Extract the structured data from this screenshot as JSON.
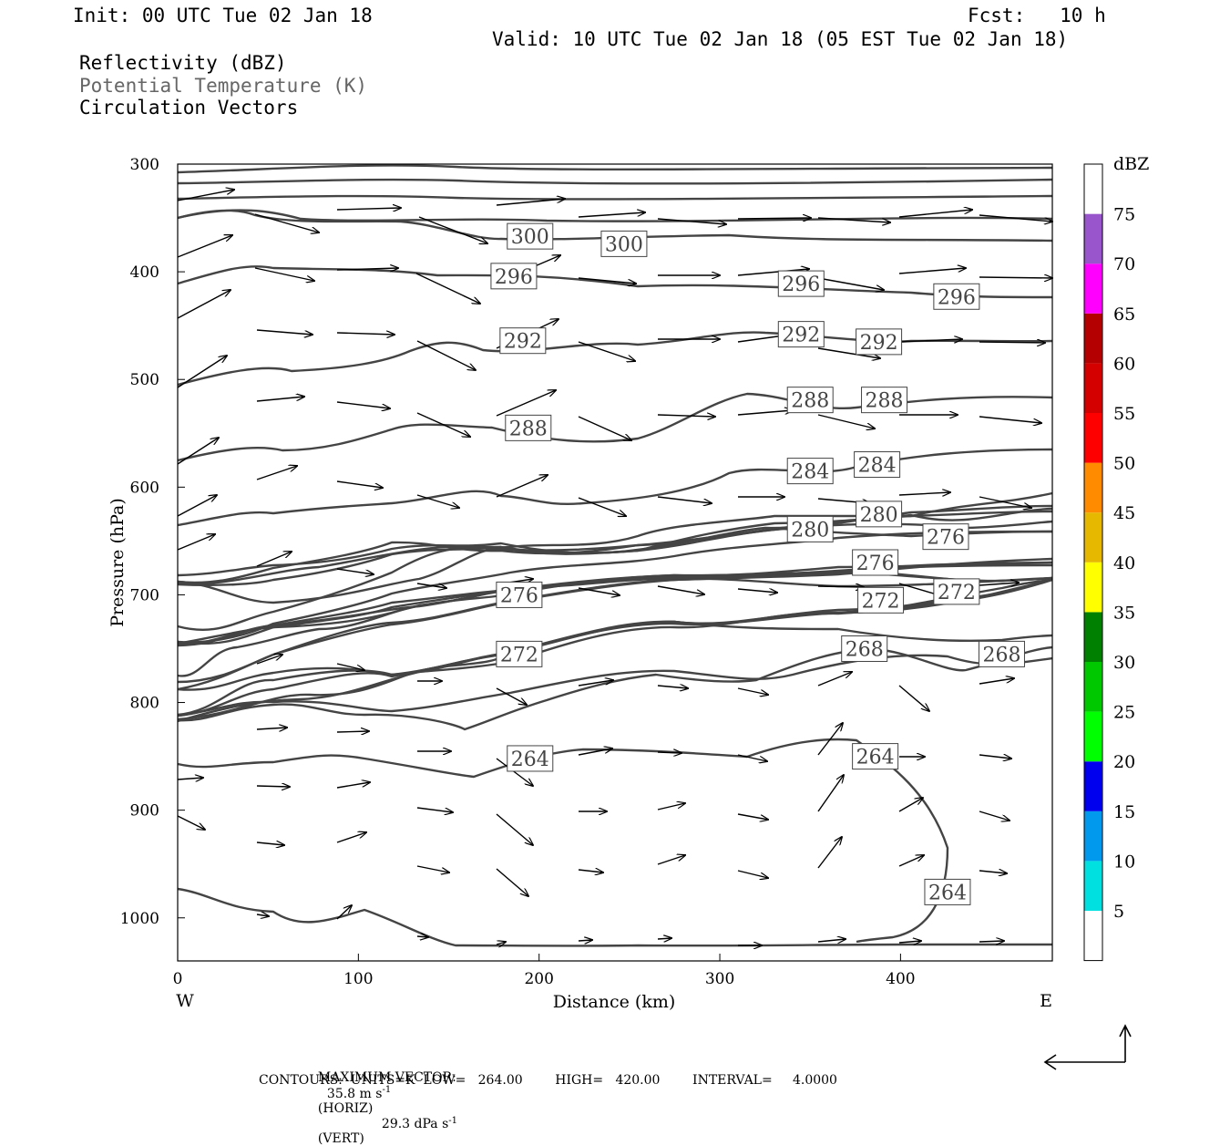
{
  "header": {
    "init": "Init: 00 UTC Tue 02 Jan 18",
    "fcst": "Fcst:   10 h",
    "valid": "Valid: 10 UTC Tue 02 Jan 18 (05 EST Tue 02 Jan 18)",
    "line1": "Reflectivity (dBZ)",
    "line2": "Potential Temperature (K)",
    "line3": "Circulation Vectors"
  },
  "footer": {
    "max_vector_label": "MAXIMUM VECTOR:",
    "max_vector_horiz": "35.8 m s",
    "horiz_tag": "(HORIZ)",
    "max_vector_vert": "29.3 dPa s",
    "vert_tag": "(VERT)",
    "contours": "CONTOURS:  UNITS=K  LOW=   264.00        HIGH=   420.00        INTERVAL=     4.0000"
  },
  "colors": {
    "contour": "#444444",
    "axis": "#000000"
  },
  "chart_data": {
    "type": "contour",
    "xlabel": "Distance (km)",
    "ylabel": "Pressure (hPa)",
    "xlim": [
      0,
      484
    ],
    "ylim": [
      1040,
      300
    ],
    "x_ticks": [
      0,
      100,
      200,
      300,
      400
    ],
    "y_ticks": [
      300,
      400,
      500,
      600,
      700,
      800,
      900,
      1000
    ],
    "x_left_label": "W",
    "x_right_label": "E",
    "colorbar": {
      "title": "dBZ",
      "levels": [
        5,
        10,
        15,
        20,
        25,
        30,
        35,
        40,
        45,
        50,
        55,
        60,
        65,
        70,
        75
      ],
      "colors": [
        "#ffffff",
        "#00e0e0",
        "#0099ee",
        "#0000ee",
        "#00ff00",
        "#00c800",
        "#008000",
        "#ffff00",
        "#e6b800",
        "#ff8c00",
        "#ff0000",
        "#d40000",
        "#b40000",
        "#ff00ff",
        "#9955cc",
        "#ffffff"
      ]
    },
    "contour_labels": [
      {
        "value": "300",
        "x": 195,
        "p": 367
      },
      {
        "value": "300",
        "x": 247,
        "p": 374
      },
      {
        "value": "296",
        "x": 186,
        "p": 404
      },
      {
        "value": "296",
        "x": 345,
        "p": 411
      },
      {
        "value": "296",
        "x": 431,
        "p": 423
      },
      {
        "value": "292",
        "x": 191,
        "p": 464
      },
      {
        "value": "292",
        "x": 345,
        "p": 458
      },
      {
        "value": "292",
        "x": 388,
        "p": 465
      },
      {
        "value": "288",
        "x": 194,
        "p": 545
      },
      {
        "value": "288",
        "x": 350,
        "p": 519
      },
      {
        "value": "288",
        "x": 391,
        "p": 519
      },
      {
        "value": "284",
        "x": 350,
        "p": 585
      },
      {
        "value": "284",
        "x": 387,
        "p": 579
      },
      {
        "value": "280",
        "x": 350,
        "p": 639
      },
      {
        "value": "280",
        "x": 388,
        "p": 625
      },
      {
        "value": "276",
        "x": 425,
        "p": 646
      },
      {
        "value": "276",
        "x": 386,
        "p": 670
      },
      {
        "value": "276",
        "x": 189,
        "p": 700
      },
      {
        "value": "272",
        "x": 431,
        "p": 697
      },
      {
        "value": "272",
        "x": 389,
        "p": 705
      },
      {
        "value": "272",
        "x": 189,
        "p": 755
      },
      {
        "value": "268",
        "x": 380,
        "p": 750
      },
      {
        "value": "268",
        "x": 456,
        "p": 755
      },
      {
        "value": "264",
        "x": 195,
        "p": 852
      },
      {
        "value": "264",
        "x": 386,
        "p": 850
      },
      {
        "value": "264",
        "x": 426,
        "p": 976
      }
    ]
  }
}
